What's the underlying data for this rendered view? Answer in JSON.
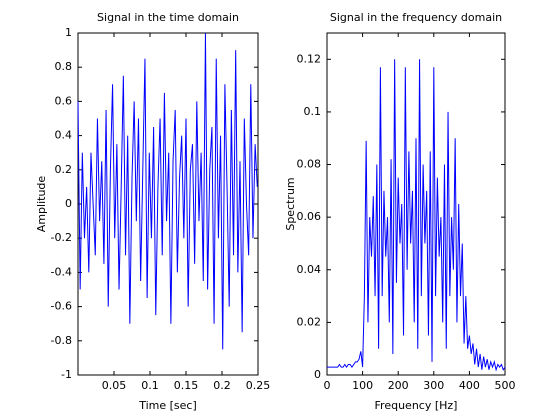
{
  "chart_data": [
    {
      "type": "line",
      "title": "Signal in the time domain",
      "xlabel": "Time [sec]",
      "ylabel": "Amplitude",
      "x": [
        0,
        0.003,
        0.006,
        0.009,
        0.012,
        0.015,
        0.018,
        0.021,
        0.024,
        0.027,
        0.03,
        0.033,
        0.036,
        0.039,
        0.042,
        0.045,
        0.048,
        0.051,
        0.054,
        0.057,
        0.06,
        0.063,
        0.066,
        0.069,
        0.072,
        0.075,
        0.078,
        0.081,
        0.084,
        0.087,
        0.09,
        0.093,
        0.096,
        0.099,
        0.102,
        0.105,
        0.108,
        0.111,
        0.114,
        0.117,
        0.12,
        0.123,
        0.126,
        0.129,
        0.132,
        0.135,
        0.138,
        0.141,
        0.144,
        0.147,
        0.15,
        0.153,
        0.156,
        0.159,
        0.162,
        0.165,
        0.168,
        0.171,
        0.174,
        0.177,
        0.18,
        0.183,
        0.186,
        0.189,
        0.192,
        0.195,
        0.198,
        0.201,
        0.204,
        0.207,
        0.21,
        0.213,
        0.216,
        0.219,
        0.222,
        0.225,
        0.228,
        0.231,
        0.234,
        0.237,
        0.24,
        0.243,
        0.246,
        0.249
      ],
      "series": [
        {
          "color": "#0000ff",
          "values": [
            0.6,
            -0.5,
            0.3,
            -0.2,
            0.1,
            -0.4,
            0.3,
            0.0,
            -0.3,
            0.5,
            -0.1,
            0.25,
            -0.35,
            0.55,
            -0.6,
            0.2,
            0.7,
            -0.2,
            0.35,
            -0.5,
            0.1,
            0.75,
            -0.3,
            0.4,
            -0.7,
            0.15,
            0.6,
            -0.1,
            0.5,
            -0.45,
            0.2,
            0.85,
            -0.55,
            0.3,
            -0.2,
            0.45,
            -0.65,
            0.1,
            0.5,
            -0.3,
            0.65,
            -0.1,
            0.3,
            -0.7,
            0.25,
            0.55,
            -0.4,
            0.15,
            0.4,
            -0.2,
            0.5,
            -0.6,
            0.2,
            0.35,
            -0.35,
            0.6,
            -0.1,
            0.3,
            -0.45,
            1.0,
            -0.5,
            0.2,
            0.45,
            -0.7,
            0.85,
            -0.2,
            0.4,
            -0.85,
            0.7,
            0.1,
            -0.6,
            0.55,
            -0.3,
            0.9,
            -0.4,
            0.25,
            -0.75,
            0.5,
            0.0,
            -0.3,
            0.7,
            -0.2,
            0.35,
            0.1
          ]
        }
      ],
      "xlim": [
        0,
        0.25
      ],
      "xticks": [
        0.05,
        0.1,
        0.15,
        0.2,
        0.25
      ],
      "ylim": [
        -1,
        1
      ],
      "yticks": [
        -1,
        -0.8,
        -0.6,
        -0.4,
        -0.2,
        0,
        0.2,
        0.4,
        0.6,
        0.8,
        1
      ]
    },
    {
      "type": "line",
      "title": "Signal in the frequency domain",
      "xlabel": "Frequency [Hz]",
      "ylabel": "Spectrum",
      "x": [
        0,
        5,
        10,
        15,
        20,
        25,
        30,
        35,
        40,
        45,
        50,
        55,
        60,
        65,
        70,
        75,
        80,
        85,
        90,
        95,
        100,
        105,
        110,
        115,
        120,
        125,
        130,
        135,
        140,
        145,
        150,
        155,
        160,
        165,
        170,
        175,
        180,
        185,
        190,
        195,
        200,
        205,
        210,
        215,
        220,
        225,
        230,
        235,
        240,
        245,
        250,
        255,
        260,
        265,
        270,
        275,
        280,
        285,
        290,
        295,
        300,
        305,
        310,
        315,
        320,
        325,
        330,
        335,
        340,
        345,
        350,
        355,
        360,
        365,
        370,
        375,
        380,
        385,
        390,
        395,
        400,
        405,
        410,
        415,
        420,
        425,
        430,
        435,
        440,
        445,
        450,
        455,
        460,
        465,
        470,
        475,
        480,
        485,
        490,
        495,
        500
      ],
      "series": [
        {
          "color": "#0000ff",
          "values": [
            0.003,
            0.003,
            0.003,
            0.003,
            0.003,
            0.003,
            0.003,
            0.004,
            0.003,
            0.003,
            0.004,
            0.003,
            0.004,
            0.004,
            0.003,
            0.004,
            0.005,
            0.005,
            0.006,
            0.009,
            0.003,
            0.03,
            0.089,
            0.02,
            0.06,
            0.045,
            0.068,
            0.03,
            0.08,
            0.01,
            0.117,
            0.03,
            0.07,
            0.045,
            0.06,
            0.02,
            0.082,
            0.008,
            0.12,
            0.035,
            0.075,
            0.05,
            0.065,
            0.015,
            0.117,
            0.04,
            0.085,
            0.05,
            0.07,
            0.02,
            0.09,
            0.01,
            0.12,
            0.03,
            0.08,
            0.05,
            0.07,
            0.015,
            0.085,
            0.005,
            0.117,
            0.03,
            0.075,
            0.045,
            0.06,
            0.02,
            0.08,
            0.01,
            0.1,
            0.03,
            0.06,
            0.04,
            0.09,
            0.02,
            0.065,
            0.03,
            0.05,
            0.012,
            0.03,
            0.01,
            0.015,
            0.008,
            0.012,
            0.004,
            0.01,
            0.003,
            0.008,
            0.002,
            0.007,
            0.003,
            0.006,
            0.002,
            0.005,
            0.003,
            0.005,
            0.002,
            0.004,
            0.003,
            0.004,
            0.002,
            0.003
          ]
        }
      ],
      "xlim": [
        0,
        500
      ],
      "xticks": [
        0,
        100,
        200,
        300,
        400,
        500
      ],
      "ylim": [
        0,
        0.13
      ],
      "yticks": [
        0,
        0.02,
        0.04,
        0.06,
        0.08,
        0.1,
        0.12
      ]
    }
  ]
}
